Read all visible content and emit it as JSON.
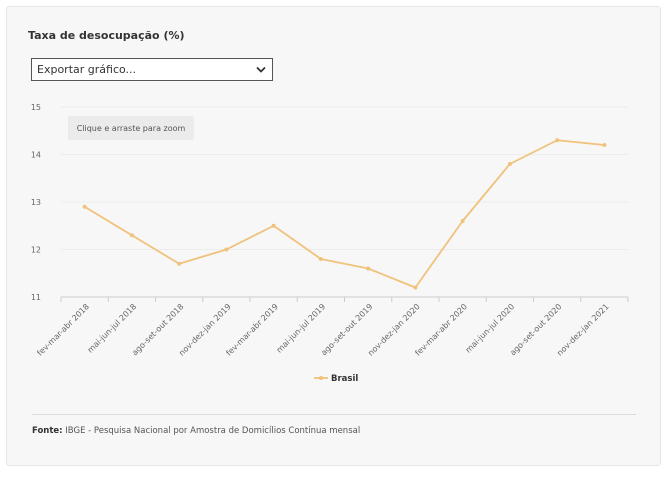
{
  "title": "Taxa de desocupação (%)",
  "export": {
    "label": "Exportar gráfico...",
    "icon": "chevron-down-icon"
  },
  "zoom_hint": "Clique e arraste para zoom",
  "source": {
    "label": "Fonte:",
    "text": "IBGE - Pesquisa Nacional por Amostra de Domicílios Contínua mensal"
  },
  "colors": {
    "series": "#f0c27b",
    "grid": "#ececec",
    "axis": "#cccccc"
  },
  "chart_data": {
    "type": "line",
    "categories": [
      "fev-mar-abr 2018",
      "mai-jun-jul 2018",
      "ago-set-out 2018",
      "nov-dez-jan 2019",
      "fev-mar-abr 2019",
      "mai-jun-jul 2019",
      "ago-set-out 2019",
      "nov-dez-jan 2020",
      "fev-mar-abr 2020",
      "mai-jun-jul 2020",
      "ago-set-out 2020",
      "nov-dez-jan 2021"
    ],
    "series": [
      {
        "name": "Brasil",
        "values": [
          12.9,
          12.3,
          11.7,
          12.0,
          12.5,
          11.8,
          11.6,
          11.2,
          12.6,
          13.8,
          14.3,
          14.2
        ]
      }
    ],
    "yticks": [
      11,
      12,
      13,
      14,
      15
    ],
    "ylim": [
      11,
      15
    ],
    "grid": true,
    "legend": "bottom-center"
  }
}
